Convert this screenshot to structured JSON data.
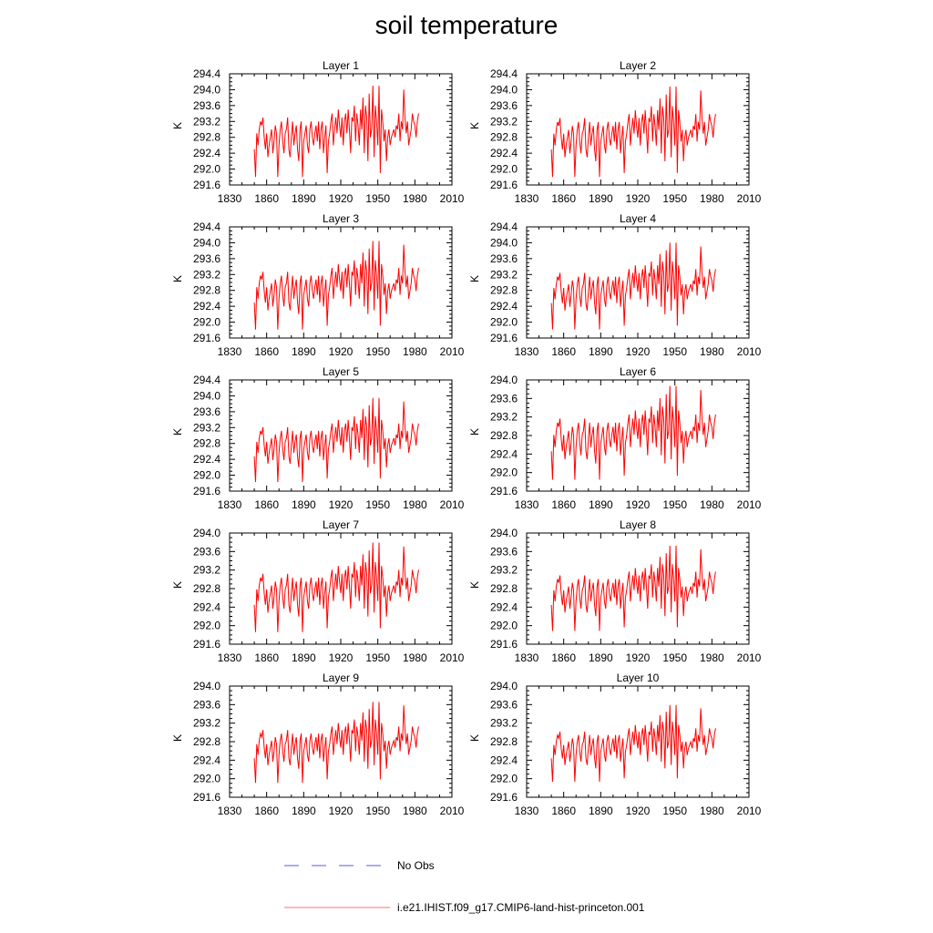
{
  "title": "soil temperature",
  "legend": {
    "placement": "bottom-center",
    "entries": [
      {
        "label": "No Obs",
        "style": "dashed",
        "color": "#5b5bd6"
      },
      {
        "label": "i.e21.IHIST.f09_g17.CMIP6-land-hist-princeton.001",
        "style": "solid",
        "color": "#ff6b6b"
      }
    ]
  },
  "colors": {
    "series": "#ff0000",
    "obs": "#5b5bd6",
    "legend_series": "#ff6b6b"
  },
  "chart_data": [
    {
      "type": "line",
      "title": "Layer 1",
      "ylabel": "K",
      "xlim": [
        1830,
        2010
      ],
      "ylim": [
        291.6,
        294.4
      ],
      "xticks": [
        "1830",
        "1860",
        "1890",
        "1920",
        "1950",
        "1980",
        "2010"
      ],
      "yticks": [
        "291.6",
        "292.0",
        "292.4",
        "292.8",
        "293.2",
        "293.6",
        "294.0",
        "294.4"
      ],
      "series": [
        {
          "name": "i.e21.IHIST.f09_g17.CMIP6-land-hist-princeton.001",
          "scale": 1.0,
          "offset": 0.0
        }
      ]
    },
    {
      "type": "line",
      "title": "Layer 2",
      "ylabel": "K",
      "xlim": [
        1830,
        2010
      ],
      "ylim": [
        291.6,
        294.4
      ],
      "xticks": [
        "1830",
        "1860",
        "1890",
        "1920",
        "1950",
        "1980",
        "2010"
      ],
      "yticks": [
        "291.6",
        "292.0",
        "292.4",
        "292.8",
        "293.2",
        "293.6",
        "294.0",
        "294.4"
      ],
      "series": [
        {
          "name": "i.e21.IHIST.f09_g17.CMIP6-land-hist-princeton.001",
          "scale": 0.99,
          "offset": -0.01
        }
      ]
    },
    {
      "type": "line",
      "title": "Layer 3",
      "ylabel": "K",
      "xlim": [
        1830,
        2010
      ],
      "ylim": [
        291.6,
        294.4
      ],
      "xticks": [
        "1830",
        "1860",
        "1890",
        "1920",
        "1950",
        "1980",
        "2010"
      ],
      "yticks": [
        "291.6",
        "292.0",
        "292.4",
        "292.8",
        "293.2",
        "293.6",
        "294.0",
        "294.4"
      ],
      "series": [
        {
          "name": "i.e21.IHIST.f09_g17.CMIP6-land-hist-princeton.001",
          "scale": 0.97,
          "offset": -0.02
        }
      ]
    },
    {
      "type": "line",
      "title": "Layer 4",
      "ylabel": "K",
      "xlim": [
        1830,
        2010
      ],
      "ylim": [
        291.6,
        294.4
      ],
      "xticks": [
        "1830",
        "1860",
        "1890",
        "1920",
        "1950",
        "1980",
        "2010"
      ],
      "yticks": [
        "291.6",
        "292.0",
        "292.4",
        "292.8",
        "293.2",
        "293.6",
        "294.0",
        "294.4"
      ],
      "series": [
        {
          "name": "i.e21.IHIST.f09_g17.CMIP6-land-hist-princeton.001",
          "scale": 0.95,
          "offset": -0.04
        }
      ]
    },
    {
      "type": "line",
      "title": "Layer 5",
      "ylabel": "K",
      "xlim": [
        1830,
        2010
      ],
      "ylim": [
        291.6,
        294.4
      ],
      "xticks": [
        "1830",
        "1860",
        "1890",
        "1920",
        "1950",
        "1980",
        "2010"
      ],
      "yticks": [
        "291.6",
        "292.0",
        "292.4",
        "292.8",
        "293.2",
        "293.6",
        "294.0",
        "294.4"
      ],
      "series": [
        {
          "name": "i.e21.IHIST.f09_g17.CMIP6-land-hist-princeton.001",
          "scale": 0.92,
          "offset": -0.06
        }
      ]
    },
    {
      "type": "line",
      "title": "Layer 6",
      "ylabel": "K",
      "xlim": [
        1830,
        2010
      ],
      "ylim": [
        291.6,
        294.0
      ],
      "xticks": [
        "1830",
        "1860",
        "1890",
        "1920",
        "1950",
        "1980",
        "2010"
      ],
      "yticks": [
        "291.6",
        "292.0",
        "292.4",
        "292.8",
        "293.2",
        "293.6",
        "294.0"
      ],
      "series": [
        {
          "name": "i.e21.IHIST.f09_g17.CMIP6-land-hist-princeton.001",
          "scale": 0.88,
          "offset": -0.09
        }
      ]
    },
    {
      "type": "line",
      "title": "Layer 7",
      "ylabel": "K",
      "xlim": [
        1830,
        2010
      ],
      "ylim": [
        291.6,
        294.0
      ],
      "xticks": [
        "1830",
        "1860",
        "1890",
        "1920",
        "1950",
        "1980",
        "2010"
      ],
      "yticks": [
        "291.6",
        "292.0",
        "292.4",
        "292.8",
        "293.2",
        "293.6",
        "294.0"
      ],
      "series": [
        {
          "name": "i.e21.IHIST.f09_g17.CMIP6-land-hist-princeton.001",
          "scale": 0.84,
          "offset": -0.12
        }
      ]
    },
    {
      "type": "line",
      "title": "Layer 8",
      "ylabel": "K",
      "xlim": [
        1830,
        2010
      ],
      "ylim": [
        291.6,
        294.0
      ],
      "xticks": [
        "1830",
        "1860",
        "1890",
        "1920",
        "1950",
        "1980",
        "2010"
      ],
      "yticks": [
        "291.6",
        "292.0",
        "292.4",
        "292.8",
        "293.2",
        "293.6",
        "294.0"
      ],
      "series": [
        {
          "name": "i.e21.IHIST.f09_g17.CMIP6-land-hist-princeton.001",
          "scale": 0.8,
          "offset": -0.14
        }
      ]
    },
    {
      "type": "line",
      "title": "Layer 9",
      "ylabel": "K",
      "xlim": [
        1830,
        2010
      ],
      "ylim": [
        291.6,
        294.0
      ],
      "xticks": [
        "1830",
        "1860",
        "1890",
        "1920",
        "1950",
        "1980",
        "2010"
      ],
      "yticks": [
        "291.6",
        "292.0",
        "292.4",
        "292.8",
        "293.2",
        "293.6",
        "294.0"
      ],
      "series": [
        {
          "name": "i.e21.IHIST.f09_g17.CMIP6-land-hist-princeton.001",
          "scale": 0.76,
          "offset": -0.16
        }
      ]
    },
    {
      "type": "line",
      "title": "Layer 10",
      "ylabel": "K",
      "xlim": [
        1830,
        2010
      ],
      "ylim": [
        291.6,
        294.0
      ],
      "xticks": [
        "1830",
        "1860",
        "1890",
        "1920",
        "1950",
        "1980",
        "2010"
      ],
      "yticks": [
        "291.6",
        "292.0",
        "292.4",
        "292.8",
        "293.2",
        "293.6",
        "294.0"
      ],
      "series": [
        {
          "name": "i.e21.IHIST.f09_g17.CMIP6-land-hist-princeton.001",
          "scale": 0.72,
          "offset": -0.18
        }
      ]
    }
  ],
  "base_series": {
    "name": "i.e21.IHIST.f09_g17.CMIP6-land-hist-princeton.001",
    "x_start": 1850,
    "x_step": 1,
    "values": [
      292.5,
      291.8,
      292.9,
      292.6,
      293.0,
      293.2,
      293.1,
      293.3,
      292.8,
      292.5,
      292.9,
      292.3,
      292.6,
      292.8,
      293.0,
      292.4,
      292.7,
      293.1,
      292.9,
      291.8,
      292.6,
      293.0,
      293.2,
      292.7,
      292.4,
      292.9,
      293.0,
      293.3,
      292.5,
      292.3,
      292.8,
      293.2,
      292.6,
      292.9,
      293.1,
      292.5,
      292.2,
      293.0,
      293.2,
      291.8,
      292.7,
      292.9,
      293.1,
      292.6,
      292.4,
      293.0,
      293.2,
      292.8,
      292.6,
      292.9,
      293.1,
      292.7,
      293.2,
      292.5,
      293.0,
      293.2,
      292.4,
      292.8,
      293.1,
      291.9,
      292.7,
      292.9,
      293.2,
      293.4,
      292.6,
      293.0,
      293.3,
      292.9,
      293.5,
      293.1,
      292.8,
      293.3,
      292.6,
      293.2,
      293.4,
      292.9,
      293.5,
      293.0,
      292.4,
      293.3,
      293.2,
      293.6,
      292.7,
      293.4,
      293.1,
      292.6,
      293.5,
      293.0,
      293.8,
      292.4,
      293.6,
      293.3,
      292.2,
      293.9,
      292.8,
      293.0,
      294.1,
      292.3,
      293.6,
      293.2,
      292.6,
      294.1,
      291.9,
      293.5,
      293.2,
      292.7,
      293.0,
      292.2,
      292.8,
      293.0,
      292.6,
      292.8,
      292.9,
      293.0,
      292.8,
      293.1,
      293.0,
      293.4,
      292.7,
      293.2,
      293.0,
      294.0,
      293.3,
      292.9,
      293.2,
      292.6,
      292.8,
      293.0,
      293.4,
      293.2,
      293.1,
      292.8,
      293.2,
      293.4
    ]
  }
}
